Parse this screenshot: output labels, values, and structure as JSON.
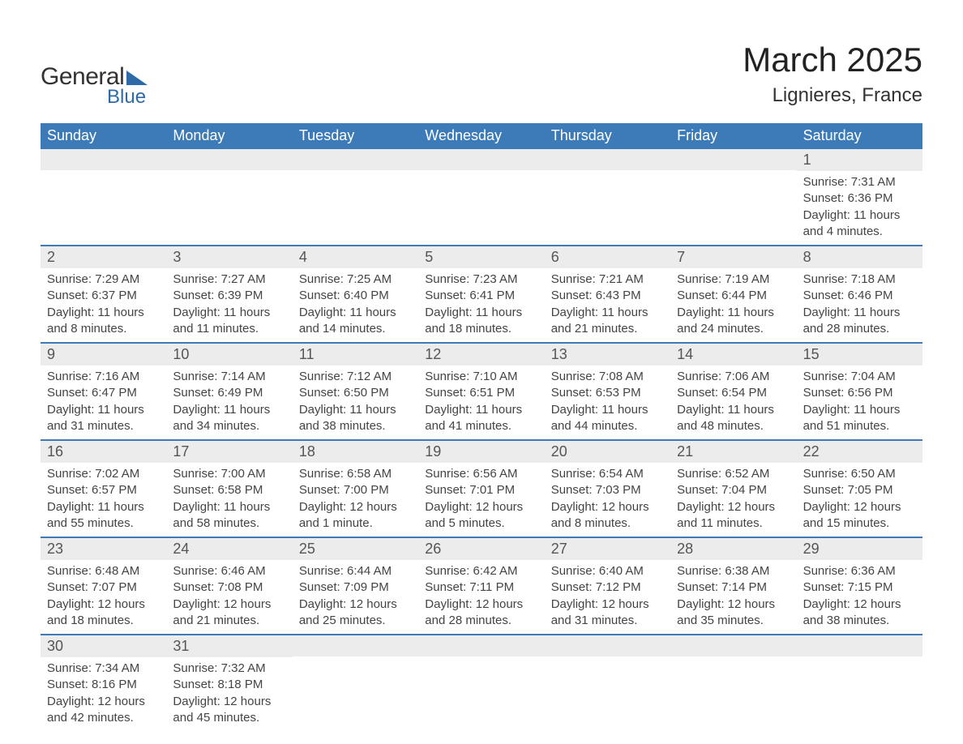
{
  "logo": {
    "word1": "General",
    "word2": "Blue"
  },
  "header": {
    "title": "March 2025",
    "location": "Lignieres, France"
  },
  "colors": {
    "brand_blue": "#3d7bb8",
    "daynum_bg": "#ececec",
    "text": "#333333",
    "row_border": "#3d7bb8"
  },
  "layout": {
    "columns": 7,
    "title_fontsize": 42,
    "location_fontsize": 24,
    "dow_fontsize": 18,
    "body_fontsize": 15
  },
  "daysOfWeek": [
    "Sunday",
    "Monday",
    "Tuesday",
    "Wednesday",
    "Thursday",
    "Friday",
    "Saturday"
  ],
  "weeks": [
    [
      {
        "n": "",
        "sunrise": "",
        "sunset": "",
        "daylight1": "",
        "daylight2": ""
      },
      {
        "n": "",
        "sunrise": "",
        "sunset": "",
        "daylight1": "",
        "daylight2": ""
      },
      {
        "n": "",
        "sunrise": "",
        "sunset": "",
        "daylight1": "",
        "daylight2": ""
      },
      {
        "n": "",
        "sunrise": "",
        "sunset": "",
        "daylight1": "",
        "daylight2": ""
      },
      {
        "n": "",
        "sunrise": "",
        "sunset": "",
        "daylight1": "",
        "daylight2": ""
      },
      {
        "n": "",
        "sunrise": "",
        "sunset": "",
        "daylight1": "",
        "daylight2": ""
      },
      {
        "n": "1",
        "sunrise": "Sunrise: 7:31 AM",
        "sunset": "Sunset: 6:36 PM",
        "daylight1": "Daylight: 11 hours",
        "daylight2": "and 4 minutes."
      }
    ],
    [
      {
        "n": "2",
        "sunrise": "Sunrise: 7:29 AM",
        "sunset": "Sunset: 6:37 PM",
        "daylight1": "Daylight: 11 hours",
        "daylight2": "and 8 minutes."
      },
      {
        "n": "3",
        "sunrise": "Sunrise: 7:27 AM",
        "sunset": "Sunset: 6:39 PM",
        "daylight1": "Daylight: 11 hours",
        "daylight2": "and 11 minutes."
      },
      {
        "n": "4",
        "sunrise": "Sunrise: 7:25 AM",
        "sunset": "Sunset: 6:40 PM",
        "daylight1": "Daylight: 11 hours",
        "daylight2": "and 14 minutes."
      },
      {
        "n": "5",
        "sunrise": "Sunrise: 7:23 AM",
        "sunset": "Sunset: 6:41 PM",
        "daylight1": "Daylight: 11 hours",
        "daylight2": "and 18 minutes."
      },
      {
        "n": "6",
        "sunrise": "Sunrise: 7:21 AM",
        "sunset": "Sunset: 6:43 PM",
        "daylight1": "Daylight: 11 hours",
        "daylight2": "and 21 minutes."
      },
      {
        "n": "7",
        "sunrise": "Sunrise: 7:19 AM",
        "sunset": "Sunset: 6:44 PM",
        "daylight1": "Daylight: 11 hours",
        "daylight2": "and 24 minutes."
      },
      {
        "n": "8",
        "sunrise": "Sunrise: 7:18 AM",
        "sunset": "Sunset: 6:46 PM",
        "daylight1": "Daylight: 11 hours",
        "daylight2": "and 28 minutes."
      }
    ],
    [
      {
        "n": "9",
        "sunrise": "Sunrise: 7:16 AM",
        "sunset": "Sunset: 6:47 PM",
        "daylight1": "Daylight: 11 hours",
        "daylight2": "and 31 minutes."
      },
      {
        "n": "10",
        "sunrise": "Sunrise: 7:14 AM",
        "sunset": "Sunset: 6:49 PM",
        "daylight1": "Daylight: 11 hours",
        "daylight2": "and 34 minutes."
      },
      {
        "n": "11",
        "sunrise": "Sunrise: 7:12 AM",
        "sunset": "Sunset: 6:50 PM",
        "daylight1": "Daylight: 11 hours",
        "daylight2": "and 38 minutes."
      },
      {
        "n": "12",
        "sunrise": "Sunrise: 7:10 AM",
        "sunset": "Sunset: 6:51 PM",
        "daylight1": "Daylight: 11 hours",
        "daylight2": "and 41 minutes."
      },
      {
        "n": "13",
        "sunrise": "Sunrise: 7:08 AM",
        "sunset": "Sunset: 6:53 PM",
        "daylight1": "Daylight: 11 hours",
        "daylight2": "and 44 minutes."
      },
      {
        "n": "14",
        "sunrise": "Sunrise: 7:06 AM",
        "sunset": "Sunset: 6:54 PM",
        "daylight1": "Daylight: 11 hours",
        "daylight2": "and 48 minutes."
      },
      {
        "n": "15",
        "sunrise": "Sunrise: 7:04 AM",
        "sunset": "Sunset: 6:56 PM",
        "daylight1": "Daylight: 11 hours",
        "daylight2": "and 51 minutes."
      }
    ],
    [
      {
        "n": "16",
        "sunrise": "Sunrise: 7:02 AM",
        "sunset": "Sunset: 6:57 PM",
        "daylight1": "Daylight: 11 hours",
        "daylight2": "and 55 minutes."
      },
      {
        "n": "17",
        "sunrise": "Sunrise: 7:00 AM",
        "sunset": "Sunset: 6:58 PM",
        "daylight1": "Daylight: 11 hours",
        "daylight2": "and 58 minutes."
      },
      {
        "n": "18",
        "sunrise": "Sunrise: 6:58 AM",
        "sunset": "Sunset: 7:00 PM",
        "daylight1": "Daylight: 12 hours",
        "daylight2": "and 1 minute."
      },
      {
        "n": "19",
        "sunrise": "Sunrise: 6:56 AM",
        "sunset": "Sunset: 7:01 PM",
        "daylight1": "Daylight: 12 hours",
        "daylight2": "and 5 minutes."
      },
      {
        "n": "20",
        "sunrise": "Sunrise: 6:54 AM",
        "sunset": "Sunset: 7:03 PM",
        "daylight1": "Daylight: 12 hours",
        "daylight2": "and 8 minutes."
      },
      {
        "n": "21",
        "sunrise": "Sunrise: 6:52 AM",
        "sunset": "Sunset: 7:04 PM",
        "daylight1": "Daylight: 12 hours",
        "daylight2": "and 11 minutes."
      },
      {
        "n": "22",
        "sunrise": "Sunrise: 6:50 AM",
        "sunset": "Sunset: 7:05 PM",
        "daylight1": "Daylight: 12 hours",
        "daylight2": "and 15 minutes."
      }
    ],
    [
      {
        "n": "23",
        "sunrise": "Sunrise: 6:48 AM",
        "sunset": "Sunset: 7:07 PM",
        "daylight1": "Daylight: 12 hours",
        "daylight2": "and 18 minutes."
      },
      {
        "n": "24",
        "sunrise": "Sunrise: 6:46 AM",
        "sunset": "Sunset: 7:08 PM",
        "daylight1": "Daylight: 12 hours",
        "daylight2": "and 21 minutes."
      },
      {
        "n": "25",
        "sunrise": "Sunrise: 6:44 AM",
        "sunset": "Sunset: 7:09 PM",
        "daylight1": "Daylight: 12 hours",
        "daylight2": "and 25 minutes."
      },
      {
        "n": "26",
        "sunrise": "Sunrise: 6:42 AM",
        "sunset": "Sunset: 7:11 PM",
        "daylight1": "Daylight: 12 hours",
        "daylight2": "and 28 minutes."
      },
      {
        "n": "27",
        "sunrise": "Sunrise: 6:40 AM",
        "sunset": "Sunset: 7:12 PM",
        "daylight1": "Daylight: 12 hours",
        "daylight2": "and 31 minutes."
      },
      {
        "n": "28",
        "sunrise": "Sunrise: 6:38 AM",
        "sunset": "Sunset: 7:14 PM",
        "daylight1": "Daylight: 12 hours",
        "daylight2": "and 35 minutes."
      },
      {
        "n": "29",
        "sunrise": "Sunrise: 6:36 AM",
        "sunset": "Sunset: 7:15 PM",
        "daylight1": "Daylight: 12 hours",
        "daylight2": "and 38 minutes."
      }
    ],
    [
      {
        "n": "30",
        "sunrise": "Sunrise: 7:34 AM",
        "sunset": "Sunset: 8:16 PM",
        "daylight1": "Daylight: 12 hours",
        "daylight2": "and 42 minutes."
      },
      {
        "n": "31",
        "sunrise": "Sunrise: 7:32 AM",
        "sunset": "Sunset: 8:18 PM",
        "daylight1": "Daylight: 12 hours",
        "daylight2": "and 45 minutes."
      },
      {
        "n": "",
        "sunrise": "",
        "sunset": "",
        "daylight1": "",
        "daylight2": ""
      },
      {
        "n": "",
        "sunrise": "",
        "sunset": "",
        "daylight1": "",
        "daylight2": ""
      },
      {
        "n": "",
        "sunrise": "",
        "sunset": "",
        "daylight1": "",
        "daylight2": ""
      },
      {
        "n": "",
        "sunrise": "",
        "sunset": "",
        "daylight1": "",
        "daylight2": ""
      },
      {
        "n": "",
        "sunrise": "",
        "sunset": "",
        "daylight1": "",
        "daylight2": ""
      }
    ]
  ]
}
